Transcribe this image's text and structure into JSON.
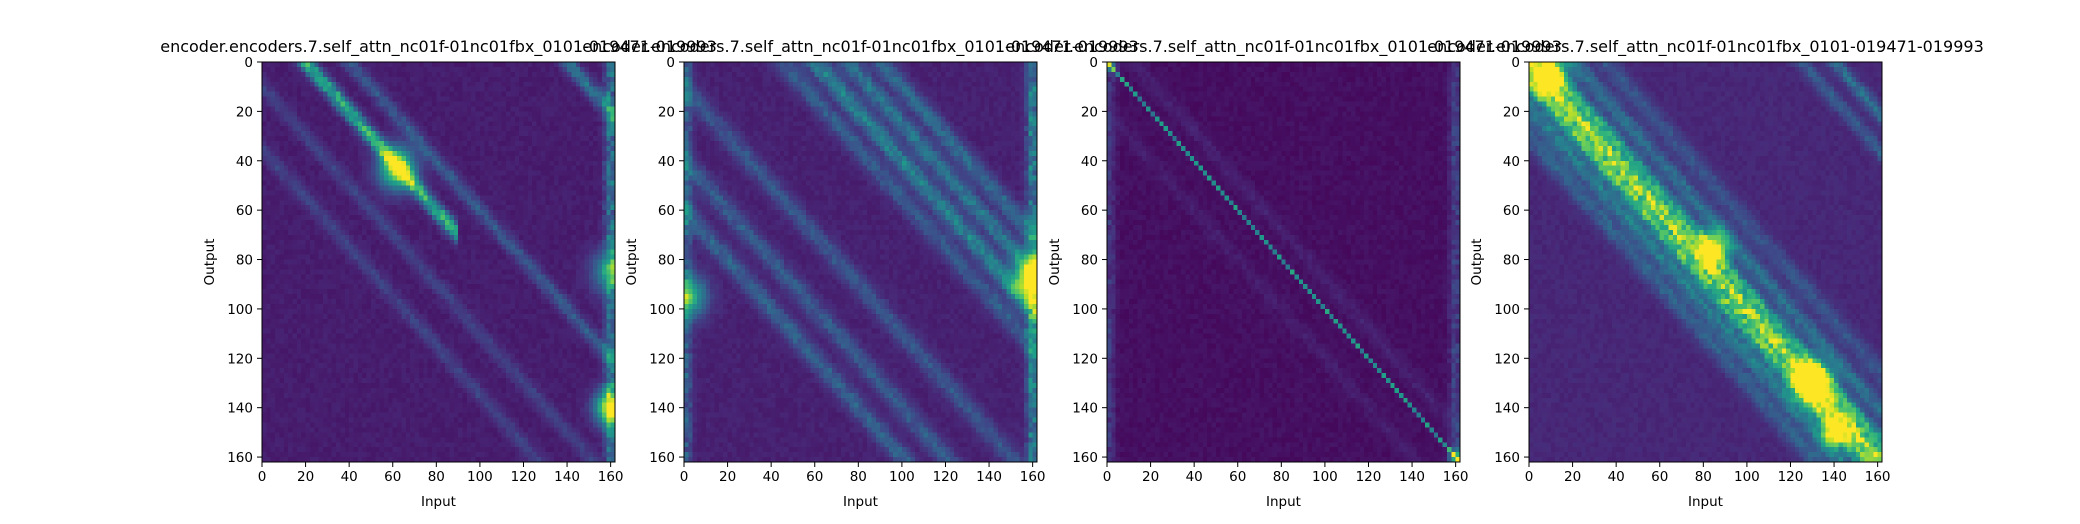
{
  "figure": {
    "background": "#ffffff",
    "colormap": [
      "#440154",
      "#482878",
      "#3e4989",
      "#31688e",
      "#26828e",
      "#1f9e89",
      "#35b779",
      "#6ece58",
      "#b5de2b",
      "#fde725"
    ]
  },
  "chart_data": [
    {
      "type": "heatmap",
      "title": "encoder.encoders.7.self_attn_nc01f-01nc01fbx_0101-019471-019993",
      "xlabel": "Input",
      "ylabel": "Output",
      "xlim": [
        0,
        162
      ],
      "ylim": [
        162,
        0
      ],
      "xticks": [
        0,
        20,
        40,
        60,
        80,
        100,
        120,
        140,
        160
      ],
      "yticks": [
        0,
        20,
        40,
        60,
        80,
        100,
        120,
        140,
        160
      ],
      "value_range": [
        0,
        1
      ],
      "pattern": {
        "background": 0.06,
        "diagonal_offsets": [
          {
            "offset": -20,
            "intensity": 0.55,
            "width": 3,
            "fade_after": 90
          },
          {
            "offset": -40,
            "intensity": 0.2,
            "width": 3
          },
          {
            "offset": 35,
            "intensity": 0.12,
            "width": 3
          },
          {
            "offset": -140,
            "intensity": 0.3,
            "width": 3
          },
          {
            "offset": 10,
            "intensity": 0.12,
            "width": 3
          }
        ],
        "hotspots": [
          {
            "x": 62,
            "y": 43,
            "intensity": 0.75,
            "radius": 6
          },
          {
            "x": 160,
            "y": 140,
            "intensity": 0.85,
            "radius": 5
          },
          {
            "x": 160,
            "y": 85,
            "intensity": 0.45,
            "radius": 6
          }
        ],
        "edge_columns": [
          {
            "x": 160,
            "intensity": 0.3,
            "width": 2
          }
        ]
      }
    },
    {
      "type": "heatmap",
      "title": "encoder.encoders.7.self_attn_nc01f-01nc01fbx_0101-019471-019993",
      "xlabel": "Input",
      "ylabel": "Output",
      "xlim": [
        0,
        162
      ],
      "ylim": [
        162,
        0
      ],
      "xticks": [
        0,
        20,
        40,
        60,
        80,
        100,
        120,
        140,
        160
      ],
      "yticks": [
        0,
        20,
        40,
        60,
        80,
        100,
        120,
        140,
        160
      ],
      "value_range": [
        0,
        1
      ],
      "pattern": {
        "background": 0.07,
        "diagonal_offsets": [
          {
            "offset": -60,
            "intensity": 0.35,
            "width": 4
          },
          {
            "offset": -75,
            "intensity": 0.3,
            "width": 4
          },
          {
            "offset": -90,
            "intensity": 0.25,
            "width": 4
          },
          {
            "offset": -45,
            "intensity": 0.2,
            "width": 4
          },
          {
            "offset": 10,
            "intensity": 0.18,
            "width": 4
          },
          {
            "offset": 40,
            "intensity": 0.2,
            "width": 4
          },
          {
            "offset": 60,
            "intensity": 0.22,
            "width": 4
          }
        ],
        "hotspots": [
          {
            "x": 160,
            "y": 88,
            "intensity": 0.9,
            "radius": 6
          },
          {
            "x": 2,
            "y": 95,
            "intensity": 0.55,
            "radius": 6
          }
        ],
        "edge_columns": [
          {
            "x": 160,
            "intensity": 0.35,
            "width": 2
          },
          {
            "x": 1,
            "intensity": 0.2,
            "width": 2
          }
        ]
      }
    },
    {
      "type": "heatmap",
      "title": "encoder.encoders.7.self_attn_nc01f-01nc01fbx_0101-019471-019993",
      "xlabel": "Input",
      "ylabel": "Output",
      "xlim": [
        0,
        162
      ],
      "ylim": [
        162,
        0
      ],
      "xticks": [
        0,
        20,
        40,
        60,
        80,
        100,
        120,
        140,
        160
      ],
      "yticks": [
        0,
        20,
        40,
        60,
        80,
        100,
        120,
        140,
        160
      ],
      "value_range": [
        0,
        1
      ],
      "pattern": {
        "background": 0.02,
        "diagonal_offsets": [
          {
            "offset": 0,
            "intensity": 0.45,
            "width": 0.7
          },
          {
            "offset": -12,
            "intensity": 0.05,
            "width": 3
          },
          {
            "offset": 20,
            "intensity": 0.04,
            "width": 3
          }
        ],
        "hotspots": [
          {
            "x": 1,
            "y": 1,
            "intensity": 0.45,
            "radius": 2
          },
          {
            "x": 160,
            "y": 160,
            "intensity": 0.6,
            "radius": 2
          }
        ],
        "edge_columns": [
          {
            "x": 160,
            "intensity": 0.15,
            "width": 2
          },
          {
            "x": 1,
            "intensity": 0.12,
            "width": 2
          }
        ]
      }
    },
    {
      "type": "heatmap",
      "title": "encoder.encoders.7.self_attn_nc01f-01nc01fbx_0101-019471-019993",
      "xlabel": "Input",
      "ylabel": "Output",
      "xlim": [
        0,
        162
      ],
      "ylim": [
        162,
        0
      ],
      "xticks": [
        0,
        20,
        40,
        60,
        80,
        100,
        120,
        140,
        160
      ],
      "yticks": [
        0,
        20,
        40,
        60,
        80,
        100,
        120,
        140,
        160
      ],
      "value_range": [
        0,
        1
      ],
      "pattern": {
        "background": 0.09,
        "diagonal_offsets": [
          {
            "offset": 0,
            "intensity": 0.75,
            "width": 3.5
          },
          {
            "offset": 8,
            "intensity": 0.55,
            "width": 3
          },
          {
            "offset": -8,
            "intensity": 0.45,
            "width": 3
          },
          {
            "offset": 18,
            "intensity": 0.3,
            "width": 4
          },
          {
            "offset": -20,
            "intensity": 0.25,
            "width": 4
          },
          {
            "offset": 30,
            "intensity": 0.2,
            "width": 4
          },
          {
            "offset": -35,
            "intensity": 0.15,
            "width": 4
          },
          {
            "offset": -140,
            "intensity": 0.25,
            "width": 3
          },
          {
            "offset": -125,
            "intensity": 0.18,
            "width": 3
          }
        ],
        "hotspots": [
          {
            "x": 10,
            "y": 5,
            "intensity": 0.75,
            "radius": 5
          },
          {
            "x": 130,
            "y": 130,
            "intensity": 0.85,
            "radius": 6
          },
          {
            "x": 140,
            "y": 150,
            "intensity": 0.8,
            "radius": 4
          },
          {
            "x": 85,
            "y": 75,
            "intensity": 0.7,
            "radius": 5
          }
        ],
        "edge_columns": []
      }
    }
  ]
}
